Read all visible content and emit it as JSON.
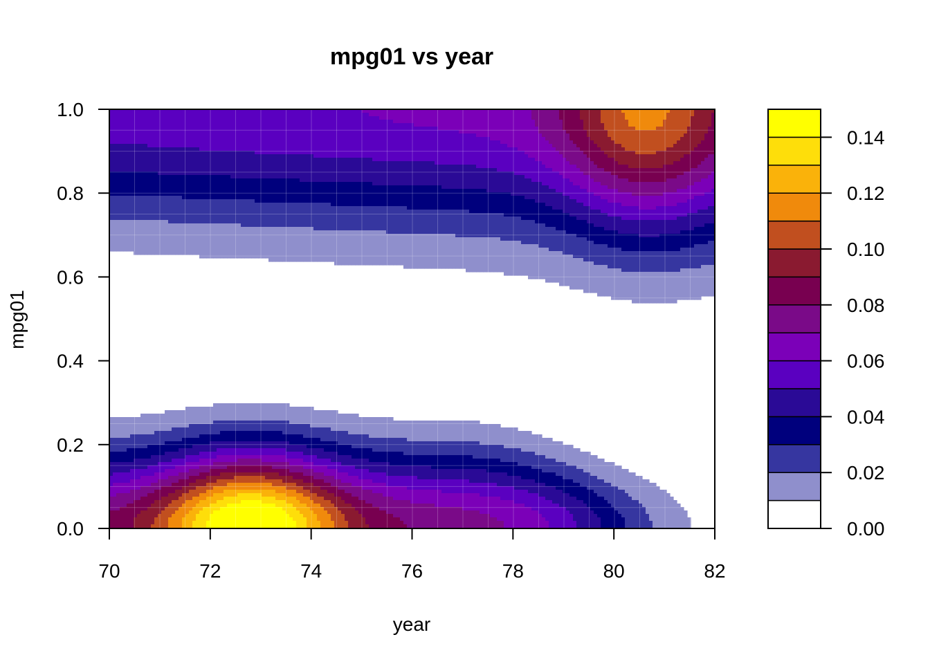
{
  "chart_data": {
    "type": "heatmap",
    "subtype": "filled-contour",
    "title": "mpg01 vs year",
    "xlabel": "year",
    "ylabel": "mpg01",
    "xlim": [
      70,
      82
    ],
    "ylim": [
      0,
      1
    ],
    "xticks": [
      "70",
      "72",
      "74",
      "76",
      "78",
      "80",
      "82"
    ],
    "yticks": [
      "0.0",
      "0.2",
      "0.4",
      "0.6",
      "0.8",
      "1.0"
    ],
    "colorbar": {
      "range": [
        0,
        0.15
      ],
      "ticks": [
        "0.00",
        "0.02",
        "0.04",
        "0.06",
        "0.08",
        "0.10",
        "0.12",
        "0.14"
      ],
      "levels": [
        0,
        0.01,
        0.02,
        0.03,
        0.04,
        0.05,
        0.06,
        0.07,
        0.08,
        0.09,
        0.1,
        0.11,
        0.12,
        0.13,
        0.14,
        0.15
      ],
      "colors": [
        "#ffffff",
        "#8f8fcc",
        "#3636a0",
        "#00007d",
        "#2a0a96",
        "#5a00c0",
        "#7b00b8",
        "#7a0a88",
        "#780050",
        "#8a1a30",
        "#c14f1f",
        "#f08a0c",
        "#fab20a",
        "#fede0a",
        "#ffff00"
      ]
    },
    "grid": true,
    "legend_position": "right"
  }
}
